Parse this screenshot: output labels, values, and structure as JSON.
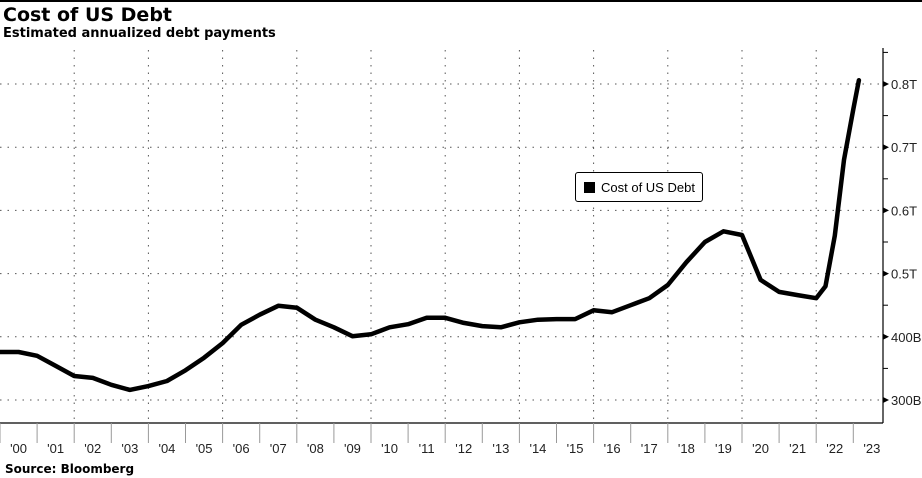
{
  "chart_data": {
    "type": "line",
    "title": "Cost of US Debt",
    "subtitle": "Estimated annualized debt payments",
    "source": "Source: Bloomberg",
    "legend": {
      "label": "Cost of US Debt",
      "placement": "center-right"
    },
    "xlabel": "",
    "ylabel": "",
    "x_ticks": [
      "'00",
      "'01",
      "'02",
      "'03",
      "'04",
      "'05",
      "'06",
      "'07",
      "'08",
      "'09",
      "'10",
      "'11",
      "'12",
      "'13",
      "'14",
      "'15",
      "'16",
      "'17",
      "'18",
      "'19",
      "'20",
      "'21",
      "'22",
      "'23"
    ],
    "y_ticks": [
      {
        "value": 300,
        "label": "300B"
      },
      {
        "value": 400,
        "label": "400B"
      },
      {
        "value": 500,
        "label": "0.5T"
      },
      {
        "value": 600,
        "label": "0.6T"
      },
      {
        "value": 700,
        "label": "0.7T"
      },
      {
        "value": 800,
        "label": "0.8T"
      }
    ],
    "xlim": [
      2000,
      2023.8
    ],
    "ylim": [
      262,
      860
    ],
    "units": "billions USD",
    "series": [
      {
        "name": "Cost of US Debt",
        "color": "#000000",
        "x": [
          2000.0,
          2000.5,
          2001.0,
          2001.5,
          2002.0,
          2002.5,
          2003.0,
          2003.5,
          2004.0,
          2004.5,
          2005.0,
          2005.5,
          2006.0,
          2006.5,
          2007.0,
          2007.5,
          2008.0,
          2008.5,
          2009.0,
          2009.5,
          2010.0,
          2010.5,
          2011.0,
          2011.5,
          2012.0,
          2012.5,
          2013.0,
          2013.5,
          2014.0,
          2014.5,
          2015.0,
          2015.5,
          2016.0,
          2016.5,
          2017.0,
          2017.5,
          2018.0,
          2018.5,
          2019.0,
          2019.5,
          2020.0,
          2020.5,
          2021.0,
          2021.5,
          2022.0,
          2022.25,
          2022.5,
          2022.75,
          2023.0,
          2023.15
        ],
        "values": [
          376,
          376,
          370,
          354,
          338,
          335,
          324,
          316,
          322,
          330,
          347,
          367,
          390,
          419,
          435,
          449,
          446,
          427,
          415,
          401,
          404,
          415,
          420,
          430,
          430,
          422,
          417,
          415,
          423,
          427,
          428,
          428,
          442,
          439,
          450,
          461,
          482,
          518,
          550,
          567,
          561,
          490,
          471,
          466,
          461,
          480,
          560,
          680,
          760,
          806
        ]
      }
    ]
  }
}
